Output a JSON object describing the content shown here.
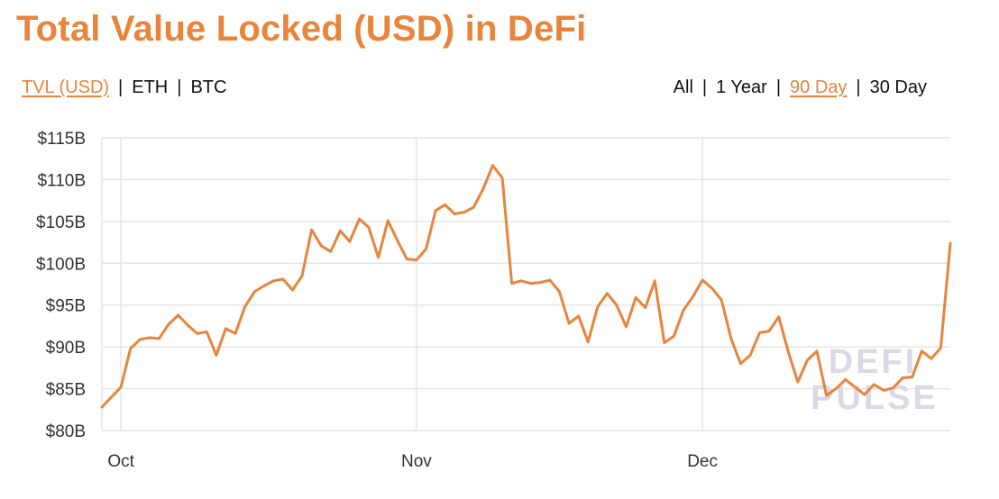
{
  "header": {
    "title": "Total Value Locked (USD) in DeFi"
  },
  "metric_options": [
    {
      "label": "TVL (USD)",
      "active": true
    },
    {
      "label": "ETH",
      "active": false
    },
    {
      "label": "BTC",
      "active": false
    }
  ],
  "range_options": [
    {
      "label": "All",
      "active": false
    },
    {
      "label": "1 Year",
      "active": false
    },
    {
      "label": "90 Day",
      "active": true
    },
    {
      "label": "30 Day",
      "active": false
    }
  ],
  "colors": {
    "accent": "#e8843c",
    "line": "#e8843c",
    "grid": "#e6e6e6",
    "watermark": "#dcd9e6"
  },
  "watermark": {
    "line1": "DEFI",
    "line2": "PULSE"
  },
  "chart_data": {
    "type": "line",
    "title": "Total Value Locked (USD) in DeFi",
    "x_axis": {
      "ticks": [
        {
          "label": "Oct",
          "day": 2
        },
        {
          "label": "Nov",
          "day": 33
        },
        {
          "label": "Dec",
          "day": 63
        }
      ],
      "domain_days": [
        0,
        89
      ]
    },
    "y_axis": {
      "ylim": [
        80,
        115
      ],
      "ticks": [
        80,
        85,
        90,
        95,
        100,
        105,
        110,
        115
      ],
      "tick_labels": [
        "$80B",
        "$85B",
        "$90B",
        "$95B",
        "$100B",
        "$105B",
        "$110B",
        "$115B"
      ]
    },
    "grid": true,
    "series": [
      {
        "values": [
          82.8,
          84,
          85.2,
          89.8,
          90.9,
          91.1,
          91,
          92.7,
          93.8,
          92.6,
          91.6,
          91.8,
          89,
          92.2,
          91.6,
          94.8,
          96.6,
          97.3,
          97.9,
          98.1,
          96.8,
          98.5,
          104,
          102.1,
          101.4,
          103.9,
          102.6,
          105.3,
          104.3,
          100.7,
          105.1,
          102.7,
          100.5,
          100.4,
          101.7,
          106.3,
          107,
          105.9,
          106.1,
          106.7,
          108.9,
          111.7,
          110.2,
          97.6,
          97.9,
          97.6,
          97.7,
          98,
          96.6,
          92.8,
          93.7,
          90.6,
          94.8,
          96.4,
          95,
          92.4,
          95.9,
          94.7,
          97.9,
          90.5,
          91.3,
          94.4,
          96,
          98,
          97,
          95.6,
          91,
          88,
          89,
          91.7,
          91.9,
          93.6,
          89.4,
          85.8,
          88.4,
          89.5,
          84.2,
          85,
          86.1,
          85.2,
          84.3,
          85.5,
          84.8,
          85.1,
          86.3,
          86.4,
          89.5,
          88.6,
          89.9,
          102.4
        ]
      }
    ]
  }
}
